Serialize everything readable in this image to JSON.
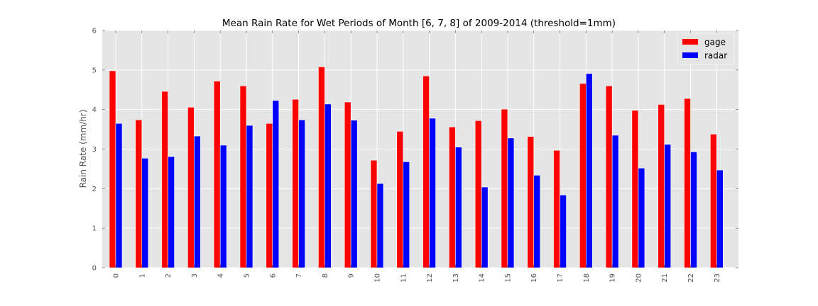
{
  "chart_data": {
    "type": "bar",
    "title": "Mean Rain Rate for Wet Periods of Month [6, 7, 8] of 2009-2014 (threshold=1mm)",
    "xlabel": "",
    "ylabel": "Rain Rate (mm/hr)",
    "ylim": [
      0,
      6
    ],
    "yticks": [
      "0",
      "1",
      "2",
      "3",
      "4",
      "5",
      "6"
    ],
    "categories": [
      "0",
      "1",
      "2",
      "3",
      "4",
      "5",
      "6",
      "7",
      "8",
      "9",
      "10",
      "11",
      "12",
      "13",
      "14",
      "15",
      "16",
      "17",
      "18",
      "19",
      "20",
      "21",
      "22",
      "23"
    ],
    "grid": true,
    "legend_position": "top-right",
    "series": [
      {
        "name": "gage",
        "color": "#ff0000",
        "values": [
          4.98,
          3.74,
          4.46,
          4.06,
          4.72,
          4.6,
          3.65,
          4.26,
          5.08,
          4.19,
          2.72,
          3.45,
          4.85,
          3.56,
          3.72,
          4.01,
          3.32,
          2.97,
          4.66,
          4.6,
          3.98,
          4.13,
          4.28,
          3.38
        ]
      },
      {
        "name": "radar",
        "color": "#0000ff",
        "values": [
          3.65,
          2.77,
          2.81,
          3.33,
          3.1,
          3.6,
          4.23,
          3.74,
          4.14,
          3.73,
          2.13,
          2.68,
          3.78,
          3.05,
          2.04,
          3.28,
          2.34,
          1.84,
          4.91,
          3.35,
          2.52,
          3.12,
          2.93,
          2.47
        ]
      }
    ]
  }
}
